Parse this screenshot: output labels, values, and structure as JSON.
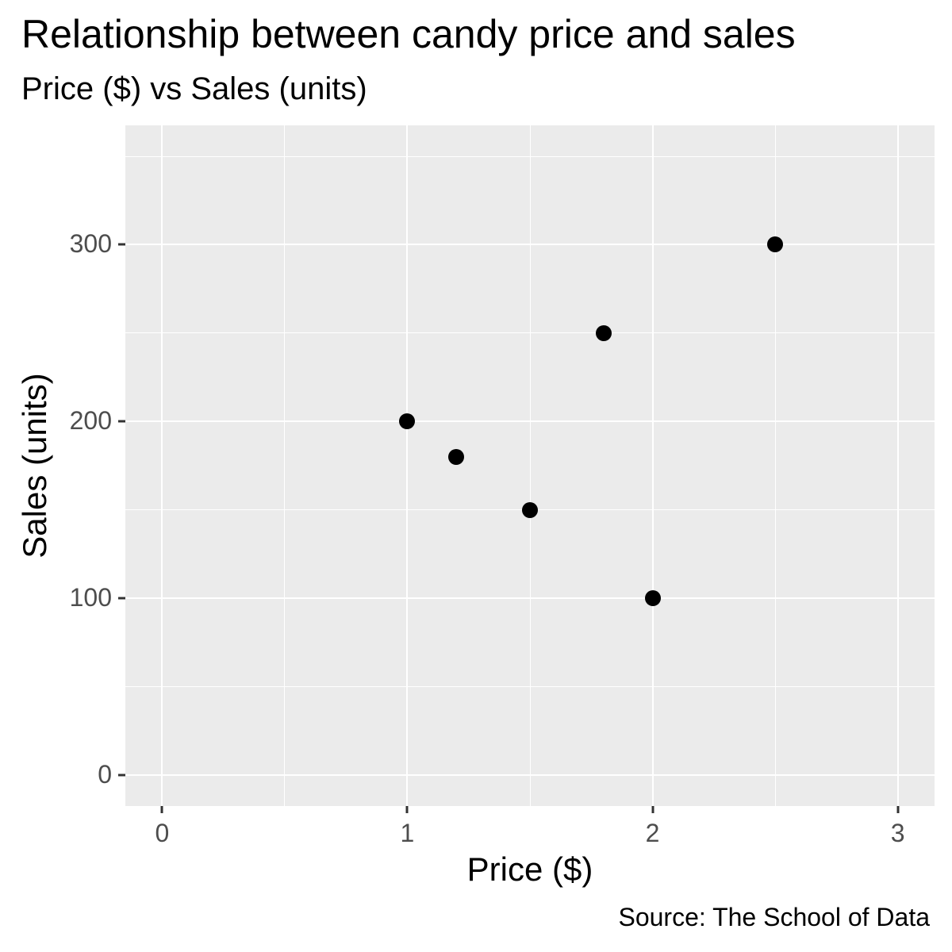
{
  "title": "Relationship between candy price and sales",
  "subtitle": "Price ($) vs Sales (units)",
  "caption": "Source: The School of Data",
  "chart_data": {
    "type": "scatter",
    "title": "Relationship between candy price and sales",
    "subtitle": "Price ($) vs Sales (units)",
    "caption": "Source: The School of Data",
    "xlabel": "Price ($)",
    "ylabel": "Sales (units)",
    "points": [
      {
        "price": 1.0,
        "sales": 200
      },
      {
        "price": 1.2,
        "sales": 180
      },
      {
        "price": 1.5,
        "sales": 150
      },
      {
        "price": 1.8,
        "sales": 250
      },
      {
        "price": 2.0,
        "sales": 100
      },
      {
        "price": 2.5,
        "sales": 300
      }
    ],
    "xlim": [
      0,
      3
    ],
    "ylim": [
      0,
      350
    ],
    "x_ticks": [
      0,
      1,
      2,
      3
    ],
    "x_tick_labels": [
      "0",
      "1",
      "2",
      "3"
    ],
    "y_ticks": [
      0,
      100,
      200,
      300
    ],
    "y_tick_labels": [
      "0",
      "100",
      "200",
      "300"
    ],
    "x_minor_ticks": [
      0.5,
      1.5,
      2.5
    ],
    "y_minor_ticks": [
      50,
      150,
      250,
      350
    ],
    "grid": "on",
    "legend": "none",
    "colors": {
      "point": "#000000",
      "panel_background": "#EBEBEB",
      "gridline": "#FFFFFF",
      "tick_label": "#4D4D4D",
      "tick_mark": "#333333",
      "text": "#000000",
      "page_background": "#FFFFFF"
    }
  }
}
